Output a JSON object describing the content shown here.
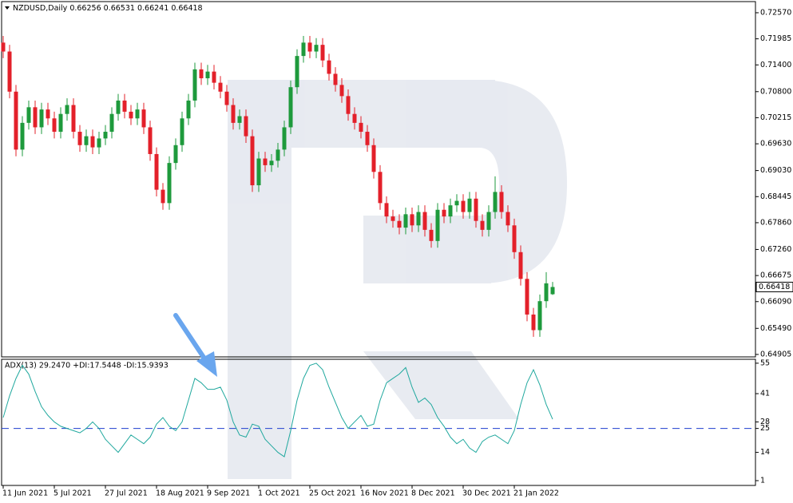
{
  "chart_data": [
    {
      "type": "candlestick",
      "title": "NZDUSD,Daily",
      "up_color": "#1e9a3c",
      "down_color": "#e3202a",
      "open": [
        0.719,
        0.717,
        0.708,
        0.695,
        0.701,
        0.7045,
        0.7,
        0.704,
        0.702,
        0.699,
        0.703,
        0.705,
        0.699,
        0.696,
        0.698,
        0.6955,
        0.6975,
        0.699,
        0.703,
        0.706,
        0.7035,
        0.702,
        0.704,
        0.7,
        0.694,
        0.686,
        0.683,
        0.692,
        0.696,
        0.702,
        0.706,
        0.713,
        0.711,
        0.7125,
        0.71,
        0.708,
        0.705,
        0.701,
        0.7025,
        0.698,
        0.687,
        0.693,
        0.6915,
        0.6925,
        0.695,
        0.7,
        0.709,
        0.716,
        0.719,
        0.717,
        0.7185,
        0.715,
        0.712,
        0.7095,
        0.707,
        0.703,
        0.701,
        0.699,
        0.696,
        0.69,
        0.683,
        0.68,
        0.679,
        0.6775,
        0.6805,
        0.678,
        0.681,
        0.677,
        0.6745,
        0.6815,
        0.68,
        0.6825,
        0.6835,
        0.681,
        0.684,
        0.679,
        0.677,
        0.681,
        0.6855,
        0.681,
        0.678,
        0.672,
        0.666,
        0.658,
        0.6545,
        0.661,
        0.66256
      ],
      "high": [
        0.7205,
        0.7185,
        0.7095,
        0.7025,
        0.706,
        0.706,
        0.7055,
        0.7055,
        0.7035,
        0.7045,
        0.7065,
        0.7065,
        0.7005,
        0.6995,
        0.6995,
        0.699,
        0.7005,
        0.7045,
        0.7075,
        0.7075,
        0.705,
        0.7055,
        0.7055,
        0.7015,
        0.6955,
        0.6875,
        0.6935,
        0.6975,
        0.7035,
        0.7075,
        0.7145,
        0.7145,
        0.714,
        0.714,
        0.7115,
        0.7095,
        0.7065,
        0.704,
        0.704,
        0.6995,
        0.6945,
        0.6945,
        0.694,
        0.6965,
        0.7015,
        0.7105,
        0.7175,
        0.7205,
        0.7205,
        0.72,
        0.72,
        0.7165,
        0.7135,
        0.711,
        0.7085,
        0.7045,
        0.7025,
        0.7005,
        0.6975,
        0.6915,
        0.6845,
        0.6815,
        0.6805,
        0.682,
        0.682,
        0.6825,
        0.6825,
        0.6785,
        0.683,
        0.683,
        0.684,
        0.685,
        0.685,
        0.6855,
        0.6855,
        0.6805,
        0.6825,
        0.689,
        0.687,
        0.6825,
        0.6795,
        0.6735,
        0.6675,
        0.6595,
        0.6625,
        0.6675,
        0.66531
      ],
      "low": [
        0.7155,
        0.7065,
        0.6935,
        0.6935,
        0.6995,
        0.6985,
        0.6985,
        0.7005,
        0.6975,
        0.6975,
        0.7015,
        0.6975,
        0.6945,
        0.6945,
        0.694,
        0.694,
        0.696,
        0.6975,
        0.7015,
        0.702,
        0.7005,
        0.7005,
        0.6985,
        0.6925,
        0.6845,
        0.6815,
        0.6815,
        0.6905,
        0.6945,
        0.7005,
        0.7045,
        0.7095,
        0.7095,
        0.7085,
        0.7065,
        0.7035,
        0.6995,
        0.6995,
        0.6965,
        0.6855,
        0.6855,
        0.69,
        0.69,
        0.691,
        0.6935,
        0.6985,
        0.7075,
        0.7145,
        0.7155,
        0.7155,
        0.7135,
        0.7105,
        0.708,
        0.7055,
        0.7015,
        0.6995,
        0.6975,
        0.6945,
        0.6885,
        0.6815,
        0.6785,
        0.6775,
        0.676,
        0.676,
        0.6765,
        0.6765,
        0.6755,
        0.673,
        0.673,
        0.6785,
        0.6785,
        0.681,
        0.6795,
        0.6795,
        0.6775,
        0.6755,
        0.6755,
        0.6795,
        0.6795,
        0.6765,
        0.6705,
        0.6645,
        0.6565,
        0.653,
        0.653,
        0.6595,
        0.66241
      ],
      "close": [
        0.717,
        0.708,
        0.695,
        0.701,
        0.7045,
        0.7,
        0.704,
        0.702,
        0.699,
        0.703,
        0.705,
        0.699,
        0.696,
        0.698,
        0.6955,
        0.6975,
        0.699,
        0.703,
        0.706,
        0.7035,
        0.702,
        0.704,
        0.7,
        0.694,
        0.686,
        0.683,
        0.692,
        0.696,
        0.702,
        0.706,
        0.713,
        0.711,
        0.7125,
        0.71,
        0.708,
        0.705,
        0.701,
        0.7025,
        0.698,
        0.687,
        0.693,
        0.6915,
        0.6925,
        0.695,
        0.7,
        0.709,
        0.716,
        0.719,
        0.717,
        0.7185,
        0.715,
        0.712,
        0.7095,
        0.707,
        0.703,
        0.701,
        0.699,
        0.696,
        0.69,
        0.683,
        0.68,
        0.679,
        0.6775,
        0.6805,
        0.678,
        0.681,
        0.677,
        0.6745,
        0.6815,
        0.68,
        0.6825,
        0.6835,
        0.681,
        0.684,
        0.679,
        0.677,
        0.681,
        0.6855,
        0.681,
        0.678,
        0.672,
        0.666,
        0.658,
        0.6545,
        0.661,
        0.665,
        0.66418
      ],
      "ylim": [
        0.6485,
        0.7282
      ],
      "yticks": [
        {
          "value": 0.7257,
          "label": "0.72570"
        },
        0.71985,
        {
          "value": 0.714,
          "label": "0.71400"
        },
        {
          "value": 0.708,
          "label": "0.70800"
        },
        0.70215,
        {
          "value": 0.6963,
          "label": "0.69630"
        },
        {
          "value": 0.6903,
          "label": "0.69030"
        },
        0.68445,
        {
          "value": 0.6786,
          "label": "0.67860"
        },
        {
          "value": 0.6726,
          "label": "0.67260"
        },
        0.66675,
        {
          "value": 0.6609,
          "label": "0.66090"
        },
        {
          "value": 0.6549,
          "label": "0.65490"
        },
        0.64905
      ],
      "grid": false
    },
    {
      "type": "line",
      "title": "ADX(13) 29.2470 +DI:17.5448 -DI:15.9393",
      "categories": [
        "11 Jun 2021",
        null,
        null,
        null,
        null,
        null,
        null,
        null,
        "5 Jul 2021",
        null,
        null,
        null,
        null,
        null,
        null,
        null,
        "27 Jul 2021",
        null,
        null,
        null,
        null,
        null,
        null,
        null,
        "18 Aug 2021",
        null,
        null,
        null,
        null,
        null,
        null,
        null,
        "9 Sep 2021",
        null,
        null,
        null,
        null,
        null,
        null,
        null,
        "1 Oct 2021",
        null,
        null,
        null,
        null,
        null,
        null,
        null,
        "25 Oct 2021",
        null,
        null,
        null,
        null,
        null,
        null,
        null,
        "16 Nov 2021",
        null,
        null,
        null,
        null,
        null,
        null,
        null,
        "8 Dec 2021",
        null,
        null,
        null,
        null,
        null,
        null,
        null,
        "30 Dec 2021",
        null,
        null,
        null,
        null,
        null,
        null,
        null,
        "21 Jan 2022",
        null,
        null,
        null,
        null,
        null,
        null
      ],
      "series": [
        {
          "color": "#20a89e",
          "values": [
            30,
            40,
            48,
            54,
            50,
            42,
            35,
            31,
            28,
            26,
            25,
            24,
            23,
            25,
            28,
            25,
            20,
            17,
            14,
            18,
            22,
            20,
            18,
            21,
            27,
            30,
            26,
            24,
            28,
            38,
            48,
            46,
            43,
            43,
            44,
            38,
            28,
            22,
            21,
            27,
            26,
            20,
            17,
            14,
            12,
            24,
            38,
            48,
            54,
            55,
            52,
            44,
            37,
            30,
            25,
            28,
            31,
            26,
            27,
            38,
            46,
            48,
            50,
            53,
            44,
            37,
            39,
            36,
            30,
            26,
            21,
            18,
            20,
            16,
            14,
            19,
            21,
            22,
            20,
            18,
            24,
            36,
            46,
            52,
            45,
            36,
            29.247
          ]
        }
      ],
      "level": 25,
      "level_color": "#1f3fcf",
      "ylim": [
        -1.2,
        56.8
      ],
      "yticks": [
        55,
        41,
        28,
        25,
        14,
        1
      ],
      "grid": false
    }
  ]
}
